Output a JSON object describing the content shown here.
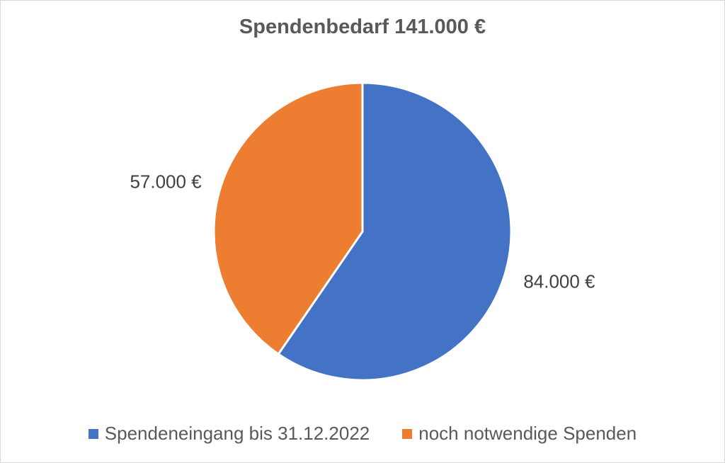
{
  "chart_data": {
    "type": "pie",
    "title": "Spendenbedarf 141.000 €",
    "categories": [
      "Spendeneingang bis 31.12.2022",
      "noch notwendige Spenden"
    ],
    "values": [
      84000,
      57000
    ],
    "data_labels": [
      "84.000 €",
      "57.000 €"
    ],
    "colors": [
      "#4472c4",
      "#ed7d31"
    ],
    "legend_position": "bottom",
    "start_angle_deg": 0,
    "direction": "clockwise"
  }
}
